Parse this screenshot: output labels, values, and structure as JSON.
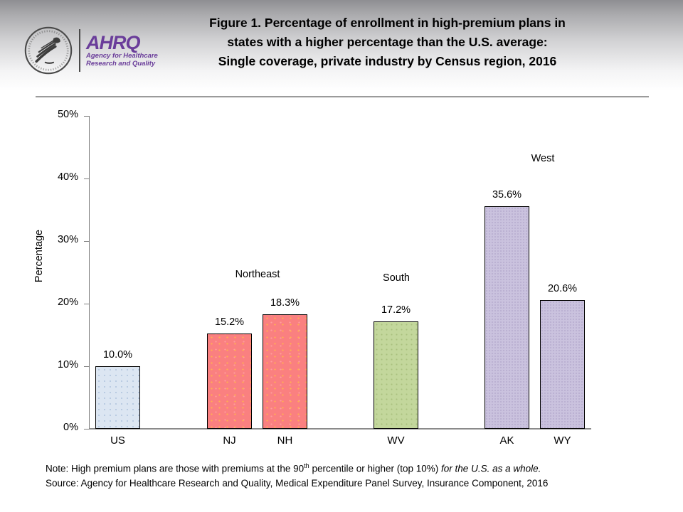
{
  "logo": {
    "wordmark": "AHRQ",
    "tagline_line1": "Agency for Healthcare",
    "tagline_line2": "Research and Quality",
    "brand_color": "#6a3d9a"
  },
  "title": {
    "line1": "Figure 1. Percentage of enrollment in high-premium plans in",
    "line2": "states with a higher percentage than the U.S. average:",
    "line3": "Single coverage, private industry by Census region, 2016"
  },
  "chart_data": {
    "type": "bar",
    "title": "Figure 1. Percentage of enrollment in high-premium plans in states with a higher percentage than the U.S. average: Single coverage, private industry by Census region, 2016",
    "xlabel": "",
    "ylabel": "Percentage",
    "ylim": [
      0,
      50
    ],
    "ytick_step": 10,
    "ytick_labels": [
      "0%",
      "10%",
      "20%",
      "30%",
      "40%",
      "50%"
    ],
    "grid": false,
    "legend": null,
    "categories": [
      "US",
      "NJ",
      "NH",
      "WV",
      "AK",
      "WY"
    ],
    "values": [
      10.0,
      15.2,
      18.3,
      17.2,
      35.6,
      20.6
    ],
    "value_labels": [
      "10.0%",
      "15.2%",
      "18.3%",
      "17.2%",
      "35.6%",
      "20.6%"
    ],
    "bar_colors": [
      "#dce6f2",
      "#fa8080",
      "#fa8080",
      "#c3d79c",
      "#cac2de",
      "#cac2de"
    ],
    "groups": [
      "us",
      "northeast",
      "northeast",
      "south",
      "west",
      "west"
    ],
    "region_labels": {
      "northeast": "Northeast",
      "south": "South",
      "west": "West"
    }
  },
  "footer": {
    "note_prefix": "Note: High premium plans are those with premiums at the 90",
    "note_superscript": "th",
    "note_middle": " percentile or higher (top 10%) ",
    "note_italic": "for the U.S. as a whole.",
    "source": "Source: Agency for Healthcare Research and Quality, Medical Expenditure Panel Survey, Insurance Component, 2016"
  }
}
